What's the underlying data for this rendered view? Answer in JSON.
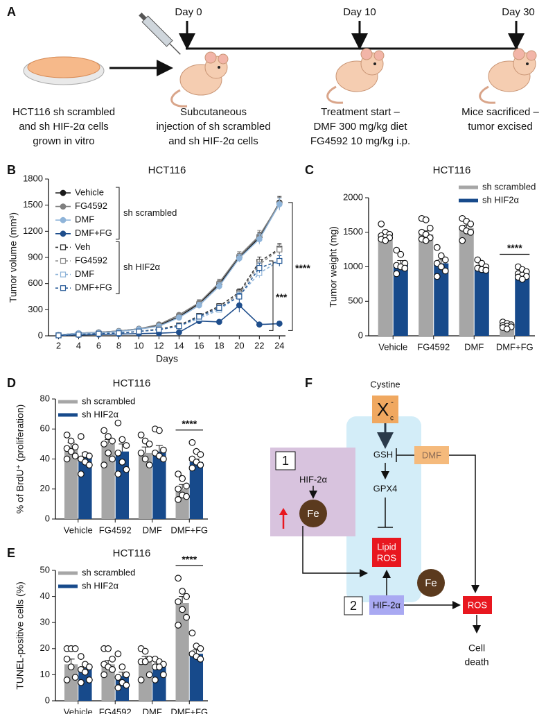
{
  "panel_labels": [
    "A",
    "B",
    "C",
    "D",
    "E",
    "F"
  ],
  "schematic_a": {
    "timeline": [
      "Day 0",
      "Day 10",
      "Day 30"
    ],
    "captions": [
      [
        "HCT116 sh scrambled",
        "and sh HIF-2α cells",
        "grown in vitro"
      ],
      [
        "Subcutaneous",
        "injection of sh scrambled",
        "and sh HIF-2α cells"
      ],
      [
        "Treatment start –",
        "DMF 300 mg/kg diet",
        "FG4592 10 mg/kg i.p."
      ],
      [
        "Mice sacrificed –",
        "tumor excised"
      ]
    ]
  },
  "chart_data": [
    {
      "type": "line",
      "title": "HCT116",
      "xlabel": "Days",
      "ylabel": "Tumor volume (mm³)",
      "x": [
        2,
        4,
        6,
        8,
        10,
        12,
        14,
        16,
        18,
        20,
        22,
        24
      ],
      "xlim": [
        1,
        24.6
      ],
      "xticks": [
        2,
        4,
        6,
        8,
        10,
        12,
        14,
        16,
        18,
        20,
        22,
        24
      ],
      "ylim": [
        0,
        1800
      ],
      "yticks": [
        0,
        300,
        600,
        900,
        1200,
        1500,
        1800
      ],
      "legend": "upper left",
      "series": [
        {
          "name": "Vehicle",
          "group": "sh scrambled",
          "color": "#1a1a1a",
          "dash": false,
          "marker": "circle",
          "filled": true,
          "values": [
            10,
            30,
            40,
            55,
            80,
            120,
            220,
            370,
            590,
            900,
            1130,
            1530
          ],
          "errors": [
            2,
            3,
            4,
            5,
            8,
            12,
            20,
            35,
            40,
            45,
            60,
            70
          ]
        },
        {
          "name": "FG4592",
          "group": "sh scrambled",
          "color": "#7f7f7f",
          "dash": false,
          "marker": "circle",
          "filled": true,
          "values": [
            10,
            30,
            40,
            55,
            80,
            130,
            240,
            380,
            610,
            920,
            1150,
            1520
          ],
          "errors": [
            2,
            3,
            4,
            5,
            8,
            12,
            20,
            35,
            40,
            45,
            60,
            70
          ]
        },
        {
          "name": "DMF",
          "group": "sh scrambled",
          "color": "#8fb4d9",
          "dash": false,
          "marker": "circle",
          "filled": true,
          "values": [
            10,
            30,
            35,
            50,
            75,
            110,
            210,
            350,
            570,
            890,
            1110,
            1510
          ],
          "errors": [
            2,
            3,
            4,
            5,
            8,
            12,
            20,
            35,
            40,
            45,
            60,
            70
          ]
        },
        {
          "name": "DMF+FG",
          "group": "sh scrambled",
          "color": "#1f4e8c",
          "dash": false,
          "marker": "circle",
          "filled": true,
          "values": [
            5,
            10,
            15,
            20,
            25,
            30,
            40,
            170,
            160,
            350,
            130,
            140
          ],
          "errors": [
            2,
            3,
            3,
            4,
            5,
            6,
            8,
            20,
            20,
            80,
            15,
            25
          ]
        },
        {
          "name": "Veh",
          "group": "sh HIF2α",
          "color": "#333333",
          "dash": true,
          "marker": "square",
          "filled": false,
          "values": [
            5,
            15,
            25,
            35,
            50,
            80,
            120,
            230,
            340,
            500,
            850,
            1000
          ],
          "errors": [
            2,
            3,
            3,
            4,
            6,
            10,
            15,
            25,
            30,
            40,
            55,
            60
          ]
        },
        {
          "name": "FG4592",
          "group": "sh HIF2α",
          "color": "#8c8c8c",
          "dash": true,
          "marker": "square",
          "filled": false,
          "values": [
            5,
            15,
            25,
            35,
            50,
            80,
            110,
            220,
            320,
            480,
            820,
            990
          ],
          "errors": [
            2,
            3,
            3,
            4,
            6,
            10,
            15,
            25,
            30,
            40,
            55,
            60
          ]
        },
        {
          "name": "DMF",
          "group": "sh HIF2α",
          "color": "#8fb4d9",
          "dash": true,
          "marker": "square",
          "filled": false,
          "values": [
            5,
            15,
            25,
            35,
            50,
            75,
            110,
            200,
            300,
            460,
            720,
            860
          ],
          "errors": [
            2,
            3,
            3,
            4,
            6,
            10,
            15,
            25,
            30,
            40,
            55,
            60
          ]
        },
        {
          "name": "DMF+FG",
          "group": "sh HIF2α",
          "color": "#2a5d99",
          "dash": true,
          "marker": "square",
          "filled": false,
          "values": [
            5,
            15,
            25,
            30,
            50,
            70,
            110,
            220,
            320,
            450,
            780,
            860
          ],
          "errors": [
            2,
            3,
            3,
            4,
            6,
            10,
            15,
            25,
            30,
            40,
            55,
            60
          ]
        }
      ],
      "annotations": [
        "****",
        "***"
      ]
    },
    {
      "type": "bar",
      "title": "HCT116",
      "ylabel": "Tumor weight (mg)",
      "categories": [
        "Vehicle",
        "FG4592",
        "DMF",
        "DMF+FG"
      ],
      "ylim": [
        0,
        2000
      ],
      "yticks": [
        0,
        500,
        1000,
        1500,
        2000
      ],
      "legend": "upper right",
      "series": [
        {
          "name": "sh scrambled",
          "color": "#a6a6a6",
          "values": [
            1450,
            1470,
            1560,
            150
          ],
          "errors": [
            40,
            50,
            40,
            15
          ],
          "points": [
            [
              1620,
              1500,
              1470,
              1450,
              1430,
              1420,
              1400,
              1380
            ],
            [
              1700,
              1680,
              1560,
              1500,
              1470,
              1420,
              1400,
              1380
            ],
            [
              1700,
              1660,
              1620,
              1560,
              1520,
              1500,
              1380
            ],
            [
              200,
              180,
              160,
              150,
              140,
              130,
              120,
              100
            ]
          ]
        },
        {
          "name": "sh HIF2α",
          "color": "#174a8b",
          "values": [
            1040,
            1050,
            990,
            900
          ],
          "errors": [
            50,
            50,
            30,
            30
          ],
          "points": [
            [
              1240,
              1180,
              1050,
              1020,
              1000,
              980,
              900
            ],
            [
              1280,
              1160,
              1100,
              1050,
              1000,
              940,
              860
            ],
            [
              1100,
              1050,
              1000,
              980,
              960,
              950
            ],
            [
              1000,
              960,
              930,
              900,
              880,
              860,
              850,
              820
            ]
          ]
        }
      ],
      "annotations": [
        "****"
      ]
    },
    {
      "type": "bar",
      "title": "HCT116",
      "ylabel": "% of BrdU⁺ (proliferation)",
      "categories": [
        "Vehicle",
        "FG4592",
        "DMF",
        "DMF+FG"
      ],
      "ylim": [
        0,
        80
      ],
      "yticks": [
        0,
        20,
        40,
        60,
        80
      ],
      "legend": "upper left",
      "series": [
        {
          "name": "sh scrambled",
          "color": "#a6a6a6",
          "values": [
            48,
            50,
            44,
            20
          ],
          "errors": [
            3,
            3,
            4,
            3
          ],
          "points": [
            [
              56,
              52,
              48,
              47,
              45,
              42,
              40
            ],
            [
              59,
              55,
              52,
              50,
              44,
              40,
              36
            ],
            [
              56,
              52,
              50,
              44,
              40,
              36
            ],
            [
              30,
              27,
              22,
              20,
              16,
              15,
              13
            ]
          ]
        },
        {
          "name": "sh HIF2α",
          "color": "#174a8b",
          "values": [
            41,
            45,
            45,
            38
          ],
          "errors": [
            3,
            5,
            4,
            2
          ],
          "points": [
            [
              55,
              43,
              42,
              40,
              38,
              36,
              30
            ],
            [
              64,
              53,
              49,
              44,
              38,
              33,
              30
            ],
            [
              60,
              59,
              46,
              44,
              42,
              40
            ],
            [
              51,
              45,
              43,
              40,
              38,
              36,
              34
            ]
          ]
        }
      ],
      "annotations": [
        "****"
      ]
    },
    {
      "type": "bar",
      "title": "HCT116",
      "ylabel": "TUNEL-positive cells (%)",
      "categories": [
        "Vehicle",
        "FG4592",
        "DMF",
        "DMF+FG"
      ],
      "ylim": [
        0,
        50
      ],
      "yticks": [
        0,
        10,
        20,
        30,
        40,
        50
      ],
      "legend": "upper left",
      "series": [
        {
          "name": "sh scrambled",
          "color": "#a6a6a6",
          "values": [
            14,
            14,
            15,
            37.5
          ],
          "errors": [
            2,
            1.5,
            2,
            2.5
          ],
          "points": [
            [
              20,
              20,
              20,
              16,
              13,
              9,
              8
            ],
            [
              20,
              20,
              16,
              14,
              13,
              12,
              10
            ],
            [
              20,
              19,
              16,
              15,
              15,
              10,
              8
            ],
            [
              47,
              42,
              40,
              38,
              35,
              32,
              29
            ]
          ]
        },
        {
          "name": "sh HIF2α",
          "color": "#174a8b",
          "values": [
            12.5,
            9.5,
            13,
            18
          ],
          "errors": [
            1.5,
            1.5,
            1.5,
            1.5
          ],
          "points": [
            [
              17,
              14,
              13,
              12,
              11,
              8,
              7
            ],
            [
              18,
              13,
              10,
              9,
              7,
              6,
              5
            ],
            [
              16,
              15,
              14,
              13,
              13,
              10,
              8
            ],
            [
              26,
              21,
              20,
              18,
              17,
              16
            ]
          ]
        }
      ],
      "annotations": [
        "****"
      ]
    }
  ],
  "diagram_f": {
    "cystine": "Cystine",
    "transporter": "X",
    "transporter_sub": "c",
    "transporter_sup": "-",
    "gsh": "GSH",
    "dmf": "DMF",
    "gpx4": "GPX4",
    "route_1": "1",
    "hif_1": "HIF-2α",
    "fe_1": "Fe",
    "lipid_ros": [
      "Lipid",
      "ROS"
    ],
    "route_2": "2",
    "hif_2": "HIF-2α",
    "fe_2": "Fe",
    "ros": "ROS",
    "cell_death": [
      "Cell",
      "death"
    ]
  }
}
